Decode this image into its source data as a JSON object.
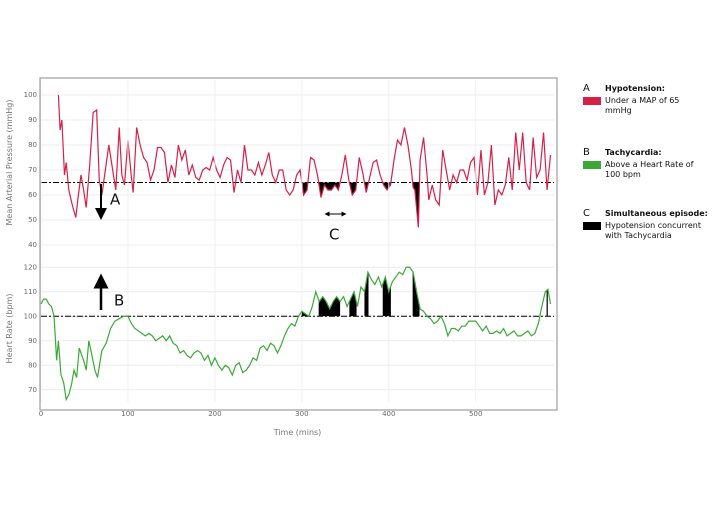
{
  "chart_data": [
    {
      "type": "line",
      "ylabel": "Mean Arterial Pressure (mmHg)",
      "xlim": [
        0,
        590
      ],
      "ylim": [
        40,
        106
      ],
      "yticks": [
        40,
        50,
        60,
        70,
        80,
        90,
        100
      ],
      "threshold": 65,
      "grid": true,
      "x": [
        20,
        22,
        24,
        27,
        29,
        32,
        36,
        40,
        43,
        46,
        49,
        52,
        56,
        60,
        64,
        67,
        70,
        74,
        78,
        82,
        86,
        90,
        93,
        96,
        100,
        104,
        106,
        110,
        114,
        118,
        122,
        126,
        130,
        134,
        138,
        142,
        146,
        150,
        154,
        158,
        162,
        166,
        170,
        174,
        178,
        182,
        186,
        190,
        194,
        198,
        202,
        206,
        210,
        214,
        218,
        222,
        226,
        230,
        234,
        238,
        242,
        246,
        250,
        254,
        258,
        262,
        266,
        270,
        274,
        278,
        282,
        286,
        290,
        294,
        298,
        302,
        306,
        310,
        314,
        318,
        322,
        326,
        330,
        334,
        338,
        342,
        346,
        350,
        354,
        358,
        362,
        366,
        370,
        374,
        378,
        382,
        386,
        390,
        394,
        398,
        402,
        406,
        410,
        414,
        418,
        422,
        426,
        428,
        430,
        434,
        436,
        440,
        444,
        446,
        450,
        454,
        458,
        462,
        466,
        470,
        474,
        478,
        482,
        486,
        490,
        494,
        498,
        502,
        506,
        510,
        514,
        518,
        522,
        526,
        530,
        534,
        538,
        542,
        546,
        550,
        554,
        558,
        562,
        566,
        570,
        574,
        578,
        582,
        586
      ],
      "series": [
        {
          "color": "#d6204a",
          "values": [
            100,
            86,
            90,
            68,
            73,
            62,
            56,
            51,
            60,
            68,
            62,
            55,
            72,
            93,
            94,
            66,
            60,
            70,
            80,
            71,
            62,
            87,
            68,
            64,
            82,
            67,
            61,
            87,
            80,
            75,
            73,
            66,
            70,
            79,
            79,
            77,
            65,
            72,
            67,
            80,
            74,
            78,
            68,
            72,
            67,
            66,
            70,
            71,
            70,
            75,
            70,
            67,
            72,
            75,
            74,
            61,
            70,
            65,
            80,
            70,
            70,
            68,
            73,
            68,
            72,
            77,
            68,
            65,
            70,
            70,
            62,
            60,
            62,
            68,
            70,
            60,
            62,
            75,
            74,
            68,
            59,
            64,
            62,
            62,
            64,
            62,
            68,
            76,
            66,
            60,
            62,
            75,
            69,
            61,
            67,
            73,
            74,
            68,
            64,
            62,
            64,
            74,
            82,
            80,
            87,
            80,
            70,
            63,
            62,
            47,
            74,
            83,
            68,
            58,
            64,
            58,
            56,
            78,
            70,
            62,
            68,
            65,
            70,
            70,
            66,
            73,
            75,
            60,
            78,
            60,
            65,
            80,
            56,
            62,
            60,
            64,
            75,
            62,
            85,
            70,
            85,
            65,
            62,
            83,
            67,
            70,
            85,
            62,
            76
          ]
        }
      ]
    },
    {
      "type": "line",
      "ylabel": "Heart Rate (bpm)",
      "xlabel": "Time (mins)",
      "xlim": [
        0,
        590
      ],
      "xticks": [
        0,
        100,
        200,
        300,
        400,
        500
      ],
      "ylim": [
        65,
        125
      ],
      "yticks": [
        70,
        80,
        90,
        100,
        110,
        120
      ],
      "threshold": 100,
      "grid": true,
      "x": [
        0,
        3,
        6,
        9,
        12,
        15,
        18,
        20,
        23,
        26,
        29,
        32,
        35,
        38,
        41,
        44,
        46,
        49,
        52,
        55,
        58,
        62,
        65,
        70,
        75,
        80,
        85,
        90,
        95,
        100,
        104,
        108,
        112,
        116,
        120,
        124,
        128,
        132,
        136,
        140,
        144,
        148,
        152,
        156,
        160,
        164,
        168,
        172,
        176,
        180,
        184,
        188,
        192,
        196,
        200,
        204,
        208,
        212,
        216,
        220,
        224,
        228,
        232,
        236,
        240,
        244,
        248,
        252,
        256,
        260,
        264,
        268,
        272,
        276,
        280,
        284,
        288,
        292,
        296,
        300,
        304,
        308,
        312,
        316,
        320,
        324,
        328,
        332,
        336,
        340,
        344,
        348,
        352,
        356,
        360,
        364,
        368,
        372,
        376,
        380,
        384,
        388,
        392,
        396,
        400,
        404,
        408,
        412,
        416,
        420,
        424,
        428,
        432,
        436,
        440,
        444,
        448,
        452,
        456,
        460,
        464,
        468,
        472,
        476,
        480,
        484,
        488,
        492,
        496,
        500,
        504,
        508,
        512,
        516,
        520,
        524,
        528,
        532,
        536,
        540,
        544,
        548,
        552,
        556,
        560,
        564,
        568,
        572,
        576,
        580,
        583,
        586
      ],
      "series": [
        {
          "color": "#3aaa35",
          "values": [
            105,
            107,
            107,
            105,
            104,
            100,
            82,
            90,
            76,
            73,
            66,
            68,
            72,
            78,
            75,
            87,
            85,
            82,
            78,
            90,
            85,
            78,
            75,
            86,
            89,
            95,
            98,
            99,
            100,
            100,
            97,
            95,
            94,
            93,
            92,
            93,
            92,
            90,
            91,
            92,
            90,
            92,
            89,
            88,
            85,
            86,
            84,
            83,
            85,
            86,
            85,
            82,
            84,
            80,
            83,
            80,
            78,
            80,
            79,
            76,
            80,
            81,
            77,
            78,
            80,
            83,
            82,
            87,
            88,
            86,
            89,
            88,
            85,
            88,
            92,
            95,
            97,
            96,
            100,
            102,
            101,
            100,
            104,
            110,
            106,
            108,
            106,
            103,
            106,
            108,
            106,
            108,
            104,
            107,
            110,
            104,
            112,
            110,
            118,
            115,
            113,
            116,
            112,
            116,
            110,
            114,
            116,
            118,
            117,
            120,
            120,
            118,
            110,
            103,
            102,
            100,
            99,
            97,
            98,
            100,
            97,
            92,
            95,
            95,
            94,
            96,
            96,
            98,
            98,
            98,
            96,
            94,
            96,
            93,
            93,
            94,
            93,
            95,
            92,
            93,
            94,
            92,
            92,
            93,
            94,
            92,
            93,
            97,
            104,
            110,
            111,
            105
          ]
        }
      ]
    }
  ],
  "annotations": [
    {
      "text": "A"
    },
    {
      "text": "B"
    },
    {
      "text": "C"
    }
  ],
  "legend": [
    {
      "letter": "A",
      "title": "Hypotension:",
      "text": "Under a MAP of 65 mmHg",
      "color": "#d6204a"
    },
    {
      "letter": "B",
      "title": "Tachycardia:",
      "text": "Above a Heart Rate of 100 bpm",
      "color": "#3aaa35"
    },
    {
      "letter": "C",
      "title": "Simultaneous episode:",
      "text": "Hypotension concurrent with Tachycardia",
      "color": "#000000"
    }
  ]
}
